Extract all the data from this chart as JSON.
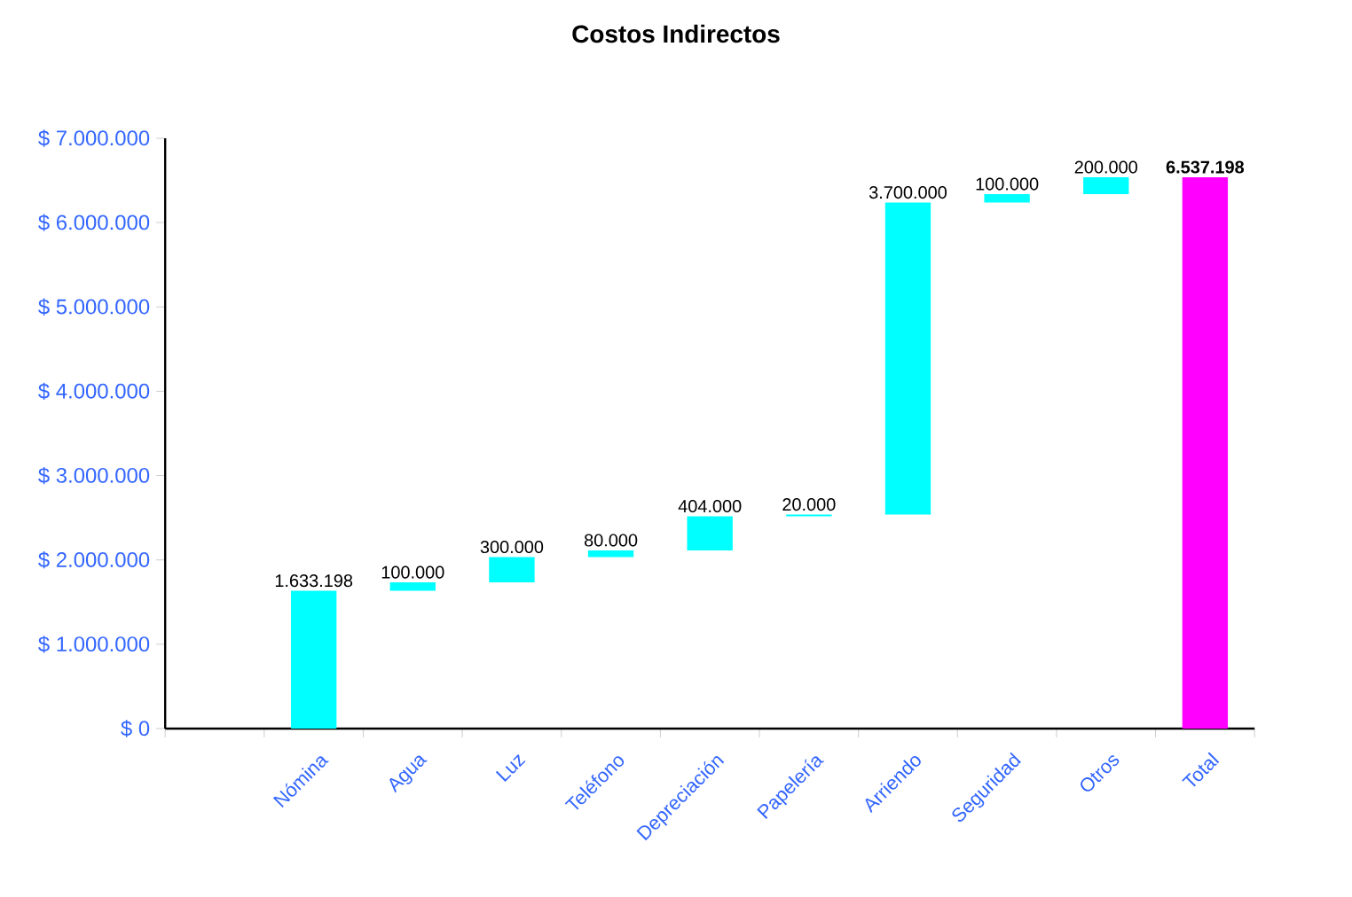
{
  "chart_data": {
    "type": "bar",
    "title": "Costos Indirectos",
    "categories": [
      null,
      "Nómina",
      "Agua",
      "Luz",
      "Teléfono",
      "Depreciación",
      "Papelería",
      "Arriendo",
      "Seguridad",
      "Otros",
      "Total"
    ],
    "values": [
      null,
      1633198,
      100000,
      300000,
      80000,
      404000,
      20000,
      3700000,
      100000,
      200000,
      6537198
    ],
    "base": [
      null,
      0,
      1633198,
      1733198,
      2033198,
      2113198,
      2517198,
      2537198,
      6237198,
      6337198,
      0
    ],
    "colors": [
      "#00ffff",
      "#00ffff",
      "#00ffff",
      "#00ffff",
      "#00ffff",
      "#00ffff",
      "#00ffff",
      "#00ffff",
      "#00ffff",
      "#00ffff",
      "#ff00ff"
    ],
    "value_labels": [
      null,
      "1.633.198",
      "100.000",
      "300.000",
      "80.000",
      "404.000",
      "20.000",
      "3.700.000",
      "100.000",
      "200.000",
      "6.537.198"
    ],
    "ylim": [
      0,
      7000000
    ],
    "yticks": [
      {
        "value": 0,
        "label": "$ 0"
      },
      {
        "value": 1000000,
        "label": "$ 1.000.000"
      },
      {
        "value": 2000000,
        "label": "$ 2.000.000"
      },
      {
        "value": 3000000,
        "label": "$ 3.000.000"
      },
      {
        "value": 4000000,
        "label": "$ 4.000.000"
      },
      {
        "value": 5000000,
        "label": "$ 5.000.000"
      },
      {
        "value": 6000000,
        "label": "$ 6.000.000"
      },
      {
        "value": 7000000,
        "label": "$ 7.000.000"
      }
    ],
    "grid": false
  }
}
